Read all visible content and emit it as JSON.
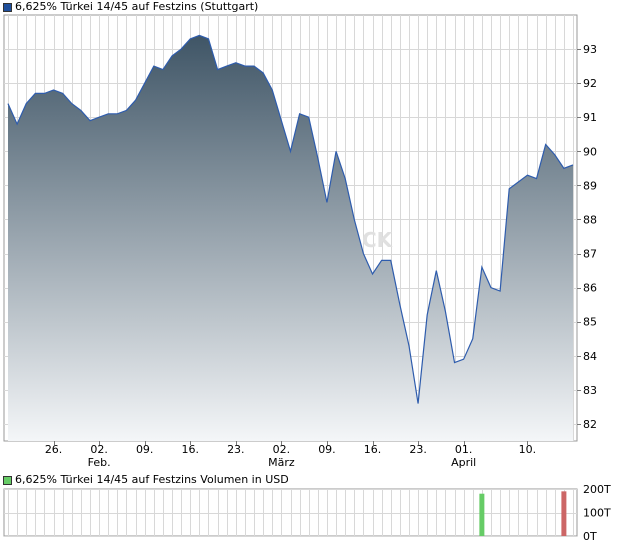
{
  "chart_data": [
    {
      "type": "area",
      "title": "6,625% Türkei 14/45 auf Festzins (Stuttgart)",
      "colors": {
        "line": "#2e5cad",
        "fill_top": "#3f5566",
        "fill_bottom": "#f4f6f8",
        "legend_swatch": "#1f4f9b",
        "grid": "#d8d8d8"
      },
      "x_tick_labels": [
        "26.",
        "02.",
        "09.",
        "16.",
        "23.",
        "02.",
        "09.",
        "16.",
        "23.",
        "01.",
        "10."
      ],
      "x_month_labels": [
        {
          "label": "Feb.",
          "under_tick": 1
        },
        {
          "label": "März",
          "under_tick": 5
        },
        {
          "label": "April",
          "under_tick": 9
        }
      ],
      "y_tick_labels": [
        "82",
        "83",
        "84",
        "85",
        "86",
        "87",
        "88",
        "89",
        "90",
        "91",
        "92",
        "93"
      ],
      "ylim": [
        81.5,
        94.0
      ],
      "grid": true,
      "watermark": "CK",
      "x": [
        "19.01",
        "20.01",
        "21.01",
        "22.01",
        "23.01",
        "24.01",
        "27.01",
        "28.01",
        "29.01",
        "30.01",
        "31.01",
        "03.02",
        "04.02",
        "05.02",
        "06.02",
        "07.02",
        "10.02",
        "11.02",
        "12.02",
        "13.02",
        "14.02",
        "17.02",
        "18.02",
        "19.02",
        "20.02",
        "21.02",
        "24.02",
        "25.02",
        "26.02",
        "27.02",
        "28.02",
        "03.03",
        "04.03",
        "05.03",
        "06.03",
        "07.03",
        "10.03",
        "11.03",
        "12.03",
        "13.03",
        "14.03",
        "17.03",
        "18.03",
        "19.03",
        "20.03",
        "21.03",
        "24.03",
        "25.03",
        "26.03",
        "27.03",
        "28.03",
        "31.03",
        "01.04",
        "02.04",
        "03.04",
        "04.04",
        "07.04",
        "08.04",
        "09.04",
        "10.04",
        "11.04",
        "14.04",
        "15.04"
      ],
      "series": [
        {
          "values": [
            91.4,
            90.8,
            91.4,
            91.7,
            91.7,
            91.8,
            91.7,
            91.4,
            91.2,
            90.9,
            91.0,
            91.1,
            91.1,
            91.2,
            91.5,
            92.0,
            92.5,
            92.4,
            92.8,
            93.0,
            93.3,
            93.4,
            93.3,
            92.4,
            92.5,
            92.6,
            92.5,
            92.5,
            92.3,
            91.8,
            90.9,
            90.0,
            91.1,
            91.0,
            89.8,
            88.5,
            90.0,
            89.2,
            88.0,
            87.0,
            86.4,
            86.8,
            86.8,
            85.5,
            84.3,
            82.6,
            85.2,
            86.5,
            85.3,
            83.8,
            83.9,
            84.5,
            86.6,
            86.0,
            85.9,
            88.9,
            89.1,
            89.3,
            89.2,
            90.2,
            89.9,
            89.5,
            89.6
          ]
        }
      ]
    },
    {
      "type": "bar",
      "title": "6,625% Türkei 14/45 auf Festzins Volumen in USD",
      "colors": {
        "legend_swatch": "#66cc66",
        "up": "#66cc66",
        "down": "#cc6666"
      },
      "y_tick_labels": [
        "200T",
        "100T",
        "0T"
      ],
      "ylim": [
        0,
        200
      ],
      "unit": "T",
      "bars": [
        {
          "x": "01.04",
          "value": 180,
          "direction": "up"
        },
        {
          "x": "14.04",
          "value": 190,
          "direction": "down"
        }
      ]
    }
  ]
}
